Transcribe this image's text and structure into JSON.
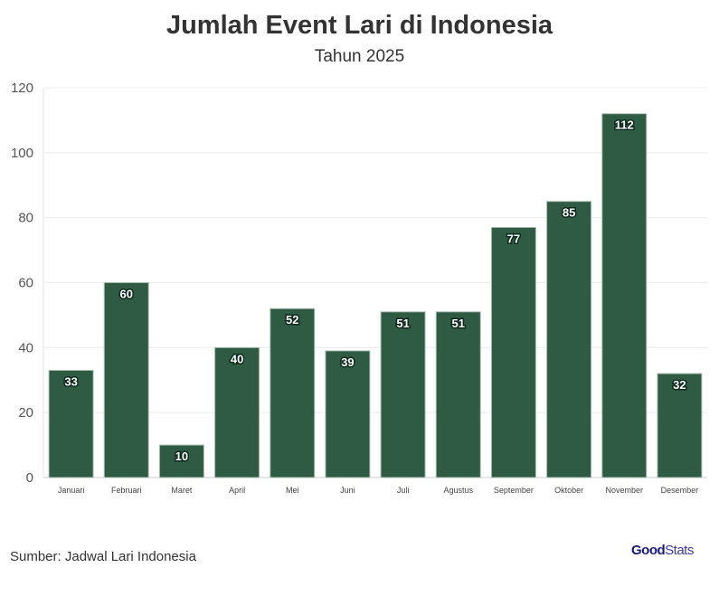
{
  "chart_data": {
    "type": "bar",
    "title": "Jumlah Event Lari di Indonesia",
    "subtitle": "Tahun 2025",
    "categories": [
      "Januari",
      "Februari",
      "Maret",
      "April",
      "Mei",
      "Juni",
      "Juli",
      "Agustus",
      "September",
      "Oktober",
      "November",
      "Desember"
    ],
    "values": [
      33,
      60,
      10,
      40,
      52,
      39,
      51,
      51,
      77,
      85,
      112,
      32
    ],
    "ylim": [
      0,
      120
    ],
    "yticks": [
      0,
      20,
      40,
      60,
      80,
      100,
      120
    ],
    "xlabel": "",
    "ylabel": "",
    "grid": true,
    "bar_color": "#2f5a44",
    "data_labels": true
  },
  "source": "Sumber: Jadwal Lari Indonesia",
  "logo": {
    "part1": "Good",
    "part2": "Stats"
  }
}
